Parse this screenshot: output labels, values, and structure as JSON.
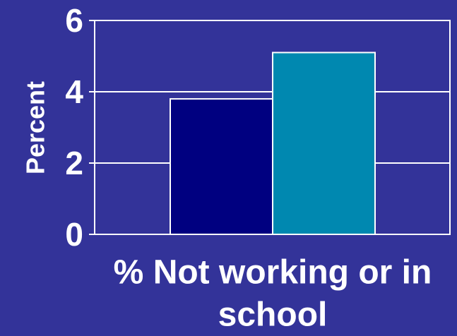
{
  "colors": {
    "background": "#333399",
    "plot_border": "#ffffff",
    "gridline": "#ffffff",
    "text": "#ffffff",
    "bar_outline": "#ffffff"
  },
  "chart_data": {
    "type": "bar",
    "categories": [
      "% Not working or in school"
    ],
    "series": [
      {
        "values": [
          3.8
        ],
        "color": "#000080"
      },
      {
        "values": [
          5.1
        ],
        "color": "#0088b0"
      }
    ],
    "xlabel": "% Not working or in school",
    "ylabel": "Percent",
    "ylim": [
      0,
      6
    ],
    "yticks": [
      0,
      2,
      4,
      6
    ],
    "grid": true,
    "legend": "none"
  }
}
